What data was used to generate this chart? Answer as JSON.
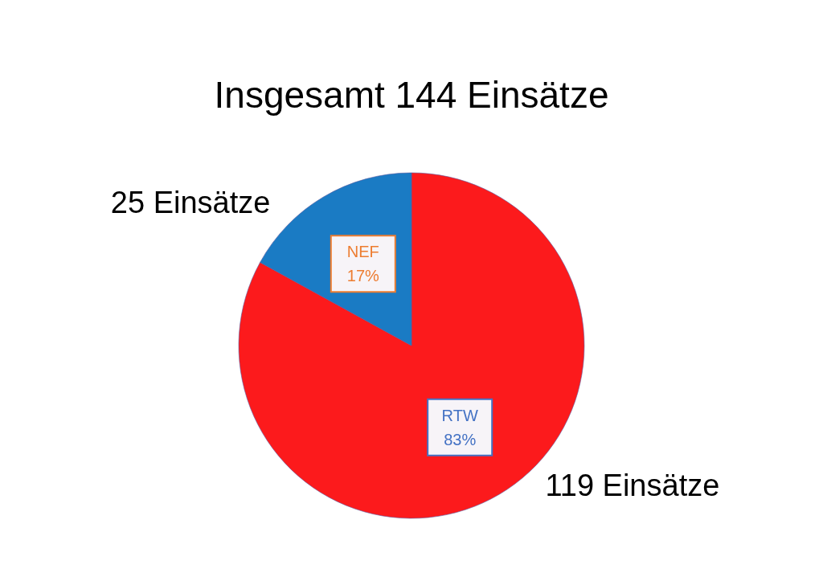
{
  "chart_data": {
    "type": "pie",
    "title": "Insgesamt 144 Einsätze",
    "categories": [
      "RTW",
      "NEF"
    ],
    "values": [
      83,
      17
    ],
    "colors": [
      "#fc1a1c",
      "#1a7bc4"
    ],
    "value_labels": [
      "83%",
      "17%"
    ],
    "annotations": [
      "119 Einsätze",
      "25 Einsätze"
    ]
  }
}
